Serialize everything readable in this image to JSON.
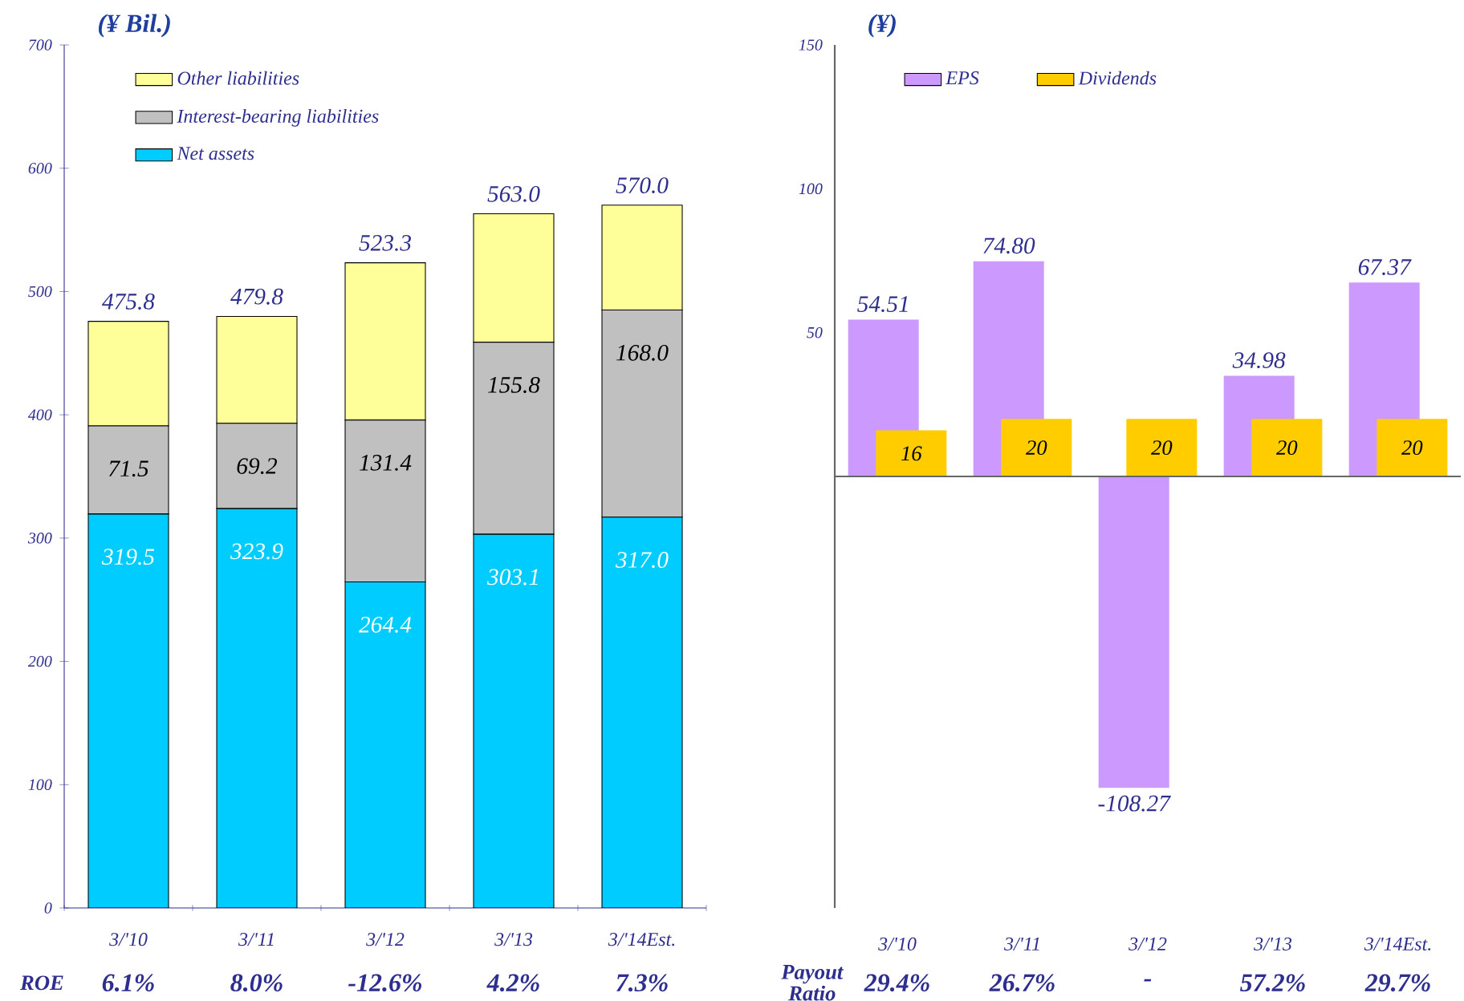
{
  "chart_data": [
    {
      "type": "bar",
      "stacked": true,
      "ylabel": "(¥ Bil.)",
      "categories": [
        "3/'10",
        "3/'11",
        "3/'12",
        "3/'13",
        "3/'14Est."
      ],
      "series": [
        {
          "name": "Net assets",
          "color": "#00ccff",
          "values": [
            319.5,
            323.9,
            264.4,
            303.1,
            317.0
          ],
          "value_labels": [
            "319.5",
            "323.9",
            "264.4",
            "303.1",
            "317.0"
          ]
        },
        {
          "name": "Interest-bearing liabilities",
          "color": "#c0c0c0",
          "values": [
            71.5,
            69.2,
            131.4,
            155.8,
            168.0
          ],
          "value_labels": [
            "71.5",
            "69.2",
            "131.4",
            "155.8",
            "168.0"
          ]
        },
        {
          "name": "Other liabilities",
          "color": "#ffff99",
          "values": [
            84.8,
            86.7,
            127.5,
            104.1,
            85.0
          ]
        }
      ],
      "totals": [
        "475.8",
        "479.8",
        "523.3",
        "563.0",
        "570.0"
      ],
      "ylim": [
        0,
        700
      ],
      "yticks": [
        0,
        100,
        200,
        300,
        400,
        500,
        600,
        700
      ],
      "legend": "top left",
      "annotations": [
        "ROE",
        "6.1%",
        "8.0%",
        "-12.6%",
        "4.2%",
        "7.3%"
      ]
    },
    {
      "type": "bar",
      "ylabel": "(¥)",
      "categories": [
        "3/'10",
        "3/'11",
        "3/'12",
        "3/'13",
        "3/'14Est."
      ],
      "series": [
        {
          "name": "EPS",
          "color": "#cc99ff",
          "values": [
            54.51,
            74.8,
            -108.27,
            34.98,
            67.37
          ],
          "value_labels": [
            "54.51",
            "74.80",
            "-108.27",
            "34.98",
            "67.37"
          ]
        },
        {
          "name": "Dividends",
          "color": "#ffcc00",
          "values": [
            16,
            20,
            20,
            20,
            20
          ],
          "value_labels": [
            "16",
            "20",
            "20",
            "20",
            "20"
          ]
        }
      ],
      "ylim": [
        -150,
        150
      ],
      "yticks": [
        50,
        100,
        150
      ],
      "legend": "top left",
      "annotations": [
        "Payout Ratio",
        "29.4%",
        "26.7%",
        "-",
        "57.2%",
        "29.7%"
      ]
    }
  ]
}
